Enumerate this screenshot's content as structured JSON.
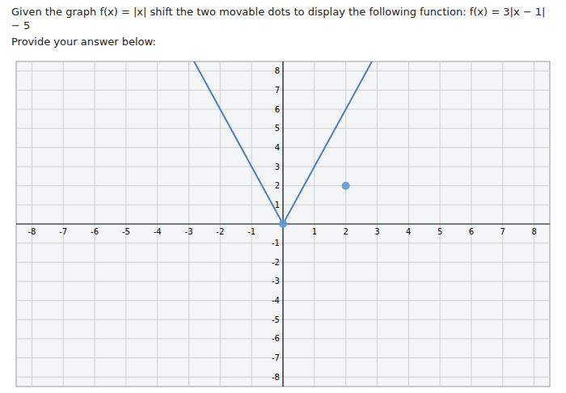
{
  "chart_data": {
    "type": "line",
    "title": "Given the graph f(x) = |x| shift the two movable dots to display the following function: f(x) = 3|x − 1| − 5",
    "subtitle": "Provide your answer below:",
    "xlim": [
      -8.5,
      8.5
    ],
    "ylim": [
      -8.5,
      8.5
    ],
    "xticks": [
      -8,
      -7,
      -6,
      -5,
      -4,
      -3,
      -2,
      -1,
      1,
      2,
      3,
      4,
      5,
      6,
      7,
      8
    ],
    "yticks": [
      -8,
      -7,
      -6,
      -5,
      -4,
      -3,
      -2,
      -1,
      1,
      2,
      3,
      4,
      5,
      6,
      7,
      8
    ],
    "grid": true,
    "series": [
      {
        "type": "line",
        "color": "#4a7fc1",
        "x": [
          -2.8333333333333335,
          0,
          2.8333333333333335
        ],
        "values": [
          8.5,
          0,
          8.5
        ]
      },
      {
        "type": "scatter",
        "color": "#5b9bd5",
        "x": [
          0,
          2
        ],
        "values": [
          0,
          2
        ]
      }
    ]
  }
}
